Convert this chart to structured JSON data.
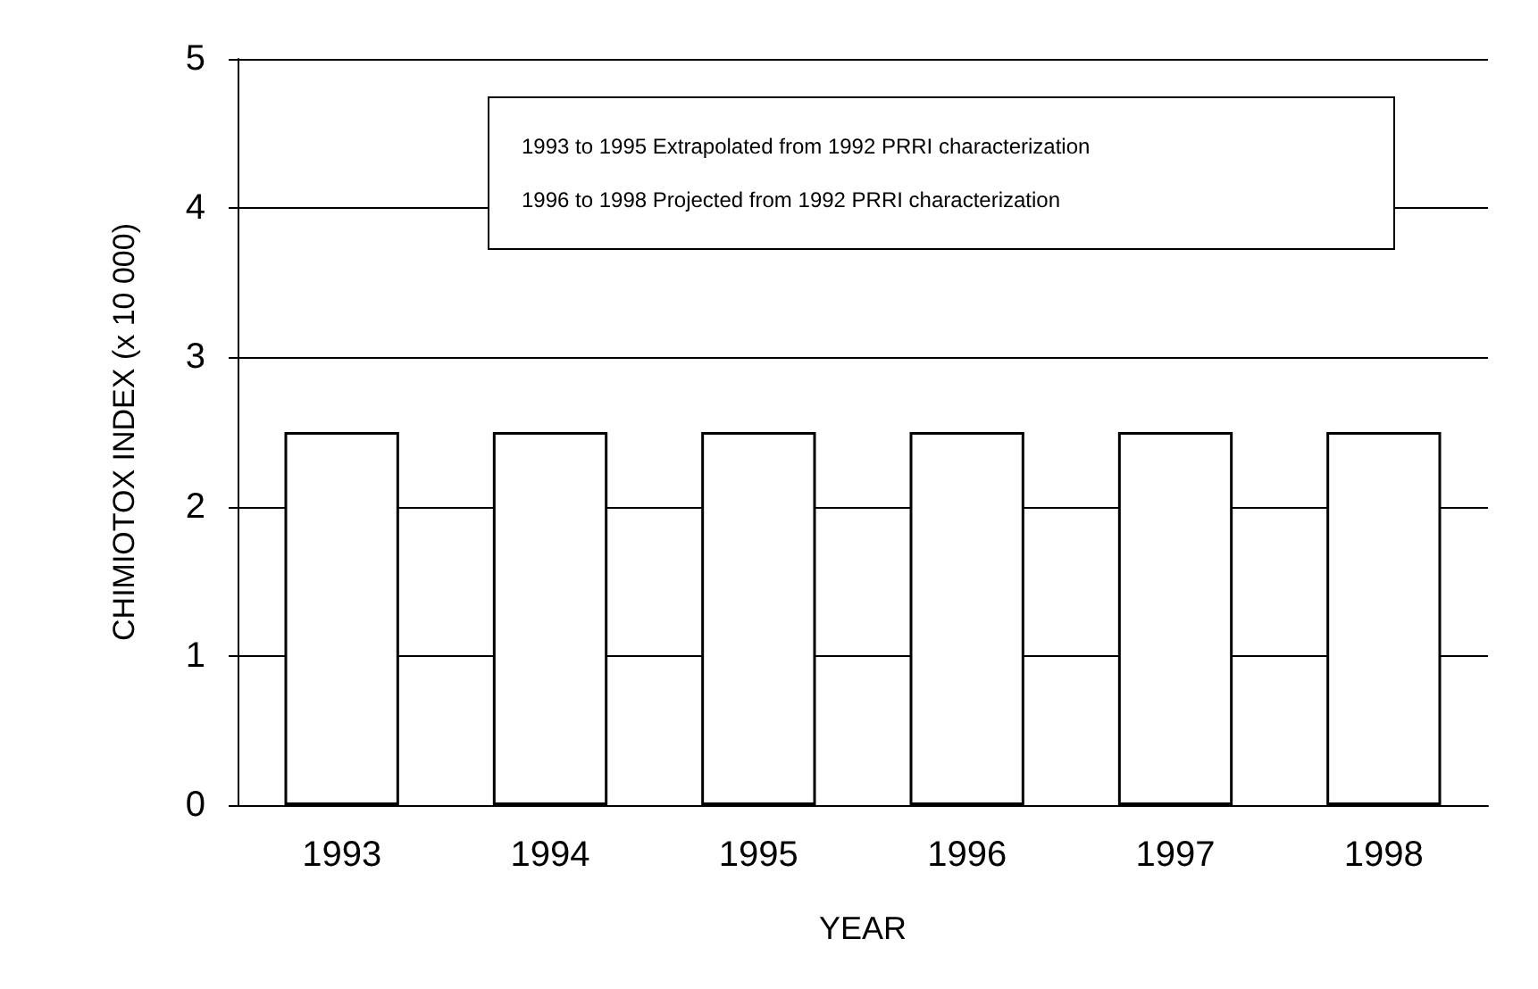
{
  "chart_data": {
    "type": "bar",
    "categories": [
      "1993",
      "1994",
      "1995",
      "1996",
      "1997",
      "1998"
    ],
    "values": [
      2.5,
      2.5,
      2.5,
      2.5,
      2.5,
      2.5
    ],
    "color": "#ffffff",
    "xlabel": "YEAR",
    "ylabel": "CHIMIOTOX INDEX (x 10 000)",
    "ylim": [
      0,
      5
    ],
    "yticks": [
      0,
      1,
      2,
      3,
      4,
      5
    ],
    "grid": "y",
    "annotations": [
      "1993 to 1995  Extrapolated from 1992 PRRI characterization",
      "1996 to 1998  Projected from 1992 PRRI characterization"
    ]
  }
}
